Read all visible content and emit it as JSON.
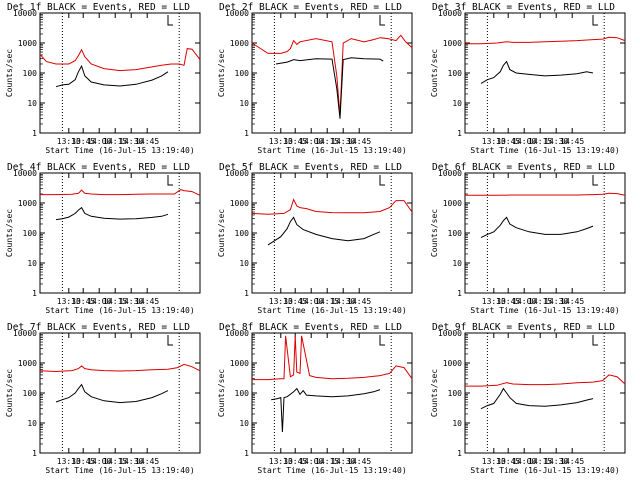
{
  "colors": {
    "events": "#000000",
    "lld": "#dd0000",
    "background": "#ffffff",
    "axis": "#000000"
  },
  "chart_data": [
    {
      "type": "line",
      "title": "Det 1f BLACK = Events, RED = LLD",
      "xlabel": "Start Time (16-Jul-15 13:19:40)",
      "ylabel": "Counts/sec",
      "xticks": [
        "13:30",
        "13:45",
        "14:00",
        "14:15",
        "14:30",
        "14:45"
      ],
      "yticks": [
        "1",
        "10",
        "100",
        "1000",
        "10000"
      ],
      "ylog": true,
      "ylim": [
        1,
        10000
      ],
      "series": [
        {
          "color": "red",
          "x": [
            0,
            0.04,
            0.1,
            0.18,
            0.22,
            0.24,
            0.26,
            0.28,
            0.32,
            0.4,
            0.5,
            0.6,
            0.7,
            0.76,
            0.82,
            0.87,
            0.9,
            0.92,
            0.95,
            1.0
          ],
          "y": [
            420,
            240,
            200,
            200,
            260,
            380,
            600,
            350,
            200,
            140,
            120,
            130,
            160,
            180,
            200,
            200,
            180,
            650,
            620,
            280
          ]
        },
        {
          "color": "black",
          "x": [
            0.1,
            0.14,
            0.18,
            0.22,
            0.24,
            0.26,
            0.28,
            0.32,
            0.4,
            0.5,
            0.6,
            0.7,
            0.76,
            0.8
          ],
          "y": [
            35,
            40,
            42,
            60,
            110,
            170,
            80,
            50,
            40,
            37,
            42,
            58,
            80,
            110
          ]
        }
      ]
    },
    {
      "type": "line",
      "title": "Det 2f BLACK = Events, RED = LLD",
      "xlabel": "Start Time (16-Jul-15 13:19:40)",
      "ylabel": "Counts/sec",
      "xticks": [
        "13:30",
        "13:45",
        "14:00",
        "14:15",
        "14:30",
        "14:45"
      ],
      "yticks": [
        "1",
        "10",
        "100",
        "1000",
        "10000"
      ],
      "ylog": true,
      "ylim": [
        1,
        10000
      ],
      "series": [
        {
          "color": "red",
          "x": [
            0,
            0.1,
            0.18,
            0.22,
            0.24,
            0.26,
            0.28,
            0.3,
            0.4,
            0.5,
            0.53,
            0.55,
            0.57,
            0.62,
            0.7,
            0.76,
            0.8,
            0.85,
            0.9,
            0.93,
            0.96,
            1.0
          ],
          "y": [
            1000,
            450,
            450,
            520,
            650,
            1200,
            900,
            1100,
            1400,
            1100,
            80,
            4,
            1000,
            1400,
            1100,
            1300,
            1500,
            1400,
            1200,
            1800,
            1100,
            700
          ]
        },
        {
          "color": "black",
          "x": [
            0.15,
            0.22,
            0.26,
            0.28,
            0.3,
            0.4,
            0.5,
            0.53,
            0.55,
            0.57,
            0.62,
            0.7,
            0.8,
            0.82
          ],
          "y": [
            200,
            230,
            280,
            270,
            260,
            300,
            290,
            30,
            3,
            280,
            320,
            300,
            290,
            250
          ]
        }
      ]
    },
    {
      "type": "line",
      "title": "Det 3f BLACK = Events, RED = LLD",
      "xlabel": "Start Time (16-Jul-15 13:19:40)",
      "ylabel": "Counts/sec",
      "xticks": [
        "13:30",
        "13:45",
        "14:00",
        "14:15",
        "14:30",
        "14:45"
      ],
      "yticks": [
        "1",
        "10",
        "100",
        "1000",
        "10000"
      ],
      "ylog": true,
      "ylim": [
        1,
        10000
      ],
      "series": [
        {
          "color": "red",
          "x": [
            0,
            0.1,
            0.2,
            0.26,
            0.3,
            0.4,
            0.5,
            0.6,
            0.7,
            0.8,
            0.86,
            0.9,
            0.95,
            1.0
          ],
          "y": [
            950,
            950,
            1000,
            1100,
            1050,
            1050,
            1100,
            1150,
            1200,
            1300,
            1350,
            1550,
            1500,
            1200
          ]
        },
        {
          "color": "black",
          "x": [
            0.1,
            0.14,
            0.18,
            0.22,
            0.24,
            0.26,
            0.28,
            0.32,
            0.4,
            0.5,
            0.6,
            0.7,
            0.76,
            0.8
          ],
          "y": [
            45,
            60,
            70,
            110,
            180,
            240,
            130,
            100,
            90,
            80,
            85,
            95,
            110,
            100
          ]
        }
      ]
    },
    {
      "type": "line",
      "title": "Det 4f BLACK = Events, RED = LLD",
      "xlabel": "Start Time (16-Jul-15 13:19:40)",
      "ylabel": "Counts/sec",
      "xticks": [
        "13:30",
        "13:45",
        "14:00",
        "14:15",
        "14:30",
        "14:45"
      ],
      "yticks": [
        "1",
        "10",
        "100",
        "1000",
        "10000"
      ],
      "ylog": true,
      "ylim": [
        1,
        10000
      ],
      "series": [
        {
          "color": "red",
          "x": [
            0,
            0.1,
            0.2,
            0.24,
            0.26,
            0.28,
            0.32,
            0.4,
            0.5,
            0.6,
            0.7,
            0.8,
            0.84,
            0.88,
            0.9,
            0.95,
            1.0
          ],
          "y": [
            1900,
            1900,
            1950,
            2100,
            2700,
            2100,
            2000,
            1900,
            1900,
            1950,
            2000,
            2000,
            2000,
            2800,
            2600,
            2400,
            1800
          ]
        },
        {
          "color": "black",
          "x": [
            0.1,
            0.14,
            0.18,
            0.22,
            0.24,
            0.26,
            0.28,
            0.32,
            0.4,
            0.5,
            0.6,
            0.7,
            0.76,
            0.8
          ],
          "y": [
            280,
            300,
            340,
            450,
            580,
            700,
            450,
            360,
            310,
            290,
            300,
            330,
            360,
            420
          ]
        }
      ]
    },
    {
      "type": "line",
      "title": "Det 5f BLACK = Events, RED = LLD",
      "xlabel": "Start Time (16-Jul-15 13:19:40)",
      "ylabel": "Counts/sec",
      "xticks": [
        "13:30",
        "13:45",
        "14:00",
        "14:15",
        "14:30",
        "14:45"
      ],
      "yticks": [
        "1",
        "10",
        "100",
        "1000",
        "10000"
      ],
      "ylog": true,
      "ylim": [
        1,
        10000
      ],
      "series": [
        {
          "color": "red",
          "x": [
            0,
            0.1,
            0.2,
            0.24,
            0.26,
            0.28,
            0.3,
            0.34,
            0.4,
            0.5,
            0.6,
            0.7,
            0.8,
            0.86,
            0.9,
            0.95,
            1.0
          ],
          "y": [
            450,
            420,
            450,
            600,
            1300,
            800,
            700,
            650,
            520,
            480,
            470,
            470,
            520,
            700,
            1200,
            1200,
            500
          ]
        },
        {
          "color": "black",
          "x": [
            0.1,
            0.14,
            0.18,
            0.22,
            0.24,
            0.26,
            0.28,
            0.32,
            0.4,
            0.5,
            0.6,
            0.7,
            0.76,
            0.8
          ],
          "y": [
            40,
            55,
            75,
            140,
            240,
            330,
            190,
            130,
            90,
            65,
            55,
            65,
            90,
            110
          ]
        }
      ]
    },
    {
      "type": "line",
      "title": "Det 6f BLACK = Events, RED = LLD",
      "xlabel": "Start Time (16-Jul-15 13:19:40)",
      "ylabel": "Counts/sec",
      "xticks": [
        "13:30",
        "13:45",
        "14:00",
        "14:15",
        "14:30",
        "14:45"
      ],
      "yticks": [
        "1",
        "10",
        "100",
        "1000",
        "10000"
      ],
      "ylog": true,
      "ylim": [
        1,
        10000
      ],
      "series": [
        {
          "color": "red",
          "x": [
            0,
            0.1,
            0.2,
            0.3,
            0.4,
            0.5,
            0.6,
            0.7,
            0.8,
            0.86,
            0.9,
            0.95,
            1.0
          ],
          "y": [
            1800,
            1800,
            1800,
            1850,
            1850,
            1850,
            1850,
            1850,
            1900,
            1950,
            2100,
            2050,
            1800
          ]
        },
        {
          "color": "black",
          "x": [
            0.1,
            0.14,
            0.18,
            0.22,
            0.24,
            0.26,
            0.28,
            0.32,
            0.4,
            0.5,
            0.6,
            0.7,
            0.76,
            0.8
          ],
          "y": [
            70,
            90,
            110,
            180,
            260,
            330,
            200,
            150,
            110,
            90,
            90,
            110,
            140,
            170
          ]
        }
      ]
    },
    {
      "type": "line",
      "title": "Det 7f BLACK = Events, RED = LLD",
      "xlabel": "Start Time (16-Jul-15 13:19:40)",
      "ylabel": "Counts/sec",
      "xticks": [
        "13:30",
        "13:45",
        "14:00",
        "14:15",
        "14:30",
        "14:45"
      ],
      "yticks": [
        "1",
        "10",
        "100",
        "1000",
        "10000"
      ],
      "ylog": true,
      "ylim": [
        1,
        10000
      ],
      "series": [
        {
          "color": "red",
          "x": [
            0,
            0.1,
            0.2,
            0.24,
            0.26,
            0.28,
            0.32,
            0.4,
            0.5,
            0.6,
            0.7,
            0.8,
            0.86,
            0.9,
            0.95,
            1.0
          ],
          "y": [
            550,
            520,
            560,
            650,
            800,
            650,
            600,
            560,
            540,
            560,
            600,
            620,
            700,
            900,
            750,
            550
          ]
        },
        {
          "color": "black",
          "x": [
            0.1,
            0.14,
            0.18,
            0.22,
            0.24,
            0.26,
            0.28,
            0.32,
            0.4,
            0.5,
            0.6,
            0.7,
            0.76,
            0.8
          ],
          "y": [
            50,
            60,
            70,
            100,
            140,
            190,
            110,
            75,
            55,
            48,
            52,
            70,
            95,
            120
          ]
        }
      ]
    },
    {
      "type": "line",
      "title": "Det 8f BLACK = Events, RED = LLD",
      "xlabel": "Start Time (16-Jul-15 13:19:40)",
      "ylabel": "Counts/sec",
      "xticks": [
        "13:30",
        "13:45",
        "14:00",
        "14:15",
        "14:30",
        "14:45"
      ],
      "yticks": [
        "1",
        "10",
        "100",
        "1000",
        "10000"
      ],
      "ylog": true,
      "ylim": [
        1,
        10000
      ],
      "series": [
        {
          "color": "red",
          "x": [
            0,
            0.1,
            0.18,
            0.2,
            0.21,
            0.24,
            0.26,
            0.27,
            0.28,
            0.3,
            0.31,
            0.36,
            0.4,
            0.5,
            0.6,
            0.7,
            0.8,
            0.86,
            0.9,
            0.95,
            1.0
          ],
          "y": [
            280,
            280,
            300,
            300,
            8000,
            350,
            400,
            8000,
            500,
            450,
            8000,
            380,
            330,
            300,
            310,
            330,
            380,
            450,
            800,
            700,
            300
          ]
        },
        {
          "color": "black",
          "x": [
            0.12,
            0.16,
            0.18,
            0.19,
            0.2,
            0.22,
            0.26,
            0.28,
            0.3,
            0.32,
            0.34,
            0.4,
            0.5,
            0.6,
            0.7,
            0.76,
            0.8
          ],
          "y": [
            60,
            65,
            70,
            5,
            70,
            75,
            110,
            140,
            90,
            120,
            85,
            80,
            75,
            80,
            95,
            110,
            130
          ]
        }
      ]
    },
    {
      "type": "line",
      "title": "Det 9f BLACK = Events, RED = LLD",
      "xlabel": "Start Time (16-Jul-15 13:19:40)",
      "ylabel": "Counts/sec",
      "xticks": [
        "13:30",
        "13:45",
        "14:00",
        "14:15",
        "14:30",
        "14:45"
      ],
      "yticks": [
        "1",
        "10",
        "100",
        "1000",
        "10000"
      ],
      "ylog": true,
      "ylim": [
        1,
        10000
      ],
      "series": [
        {
          "color": "red",
          "x": [
            0,
            0.1,
            0.2,
            0.26,
            0.3,
            0.4,
            0.5,
            0.6,
            0.7,
            0.8,
            0.86,
            0.9,
            0.95,
            1.0
          ],
          "y": [
            170,
            170,
            180,
            220,
            200,
            190,
            190,
            200,
            220,
            230,
            260,
            400,
            350,
            200
          ]
        },
        {
          "color": "black",
          "x": [
            0.1,
            0.14,
            0.18,
            0.22,
            0.24,
            0.26,
            0.28,
            0.32,
            0.4,
            0.5,
            0.6,
            0.7,
            0.76,
            0.8
          ],
          "y": [
            30,
            38,
            45,
            90,
            140,
            100,
            70,
            45,
            38,
            36,
            40,
            48,
            58,
            65
          ]
        }
      ]
    }
  ]
}
